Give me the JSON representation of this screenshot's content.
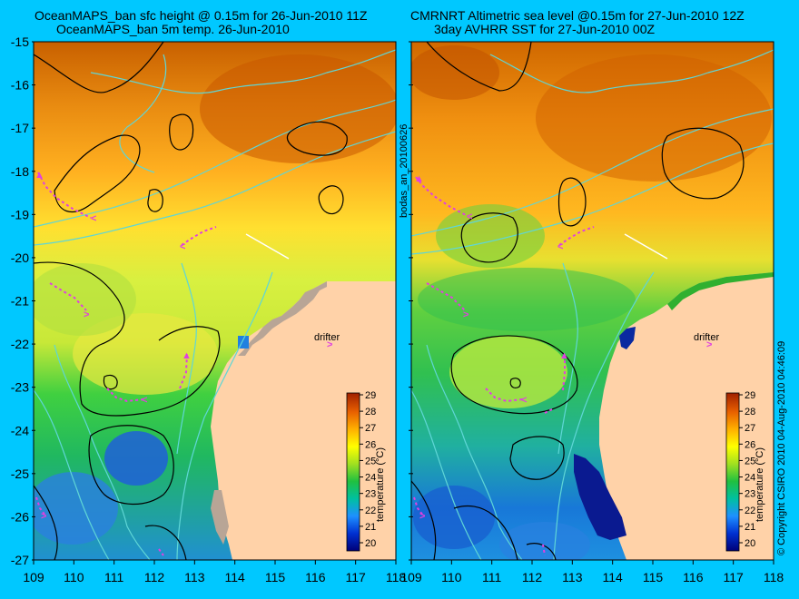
{
  "left_panel": {
    "title_line1": "OceanMAPS_ban sfc height @ 0.15m for 26-Jun-2010 11Z",
    "title_line2": "OceanMAPS_ban 5m temp. 26-Jun-2010",
    "drifter_label": "drifter"
  },
  "right_panel": {
    "title_line1": "CMRNRT Altimetric sea level  @0.15m  for 27-Jun-2010 12Z",
    "title_line2": "3day AVHRR SST for 27-Jun-2010 00Z",
    "drifter_label": "drifter"
  },
  "side_label": "bodas_an_20100626",
  "copyright": "© Copyright CSIRO 2010  04-Aug-2010 04:46:09",
  "axes": {
    "lat_ticks": [
      "-15",
      "-16",
      "-17",
      "-18",
      "-19",
      "-20",
      "-21",
      "-22",
      "-23",
      "-24",
      "-25",
      "-26",
      "-27"
    ],
    "lon_ticks": [
      "109",
      "110",
      "111",
      "112",
      "113",
      "114",
      "115",
      "116",
      "117",
      "118"
    ]
  },
  "colorbar": {
    "label": "temperature (°C)",
    "ticks": [
      "29",
      "28",
      "27",
      "26",
      "25",
      "24",
      "23",
      "22",
      "21",
      "20"
    ],
    "range": [
      20,
      29
    ]
  },
  "colors": {
    "background": "#00c8ff",
    "land": "#ffd2a8",
    "land_masked": "#b8a596",
    "bathymetry_contour": "#5fd6d6",
    "sea_level_contour": "#000000",
    "drifter_track": "#e040e0",
    "transect": "#ffffff"
  }
}
